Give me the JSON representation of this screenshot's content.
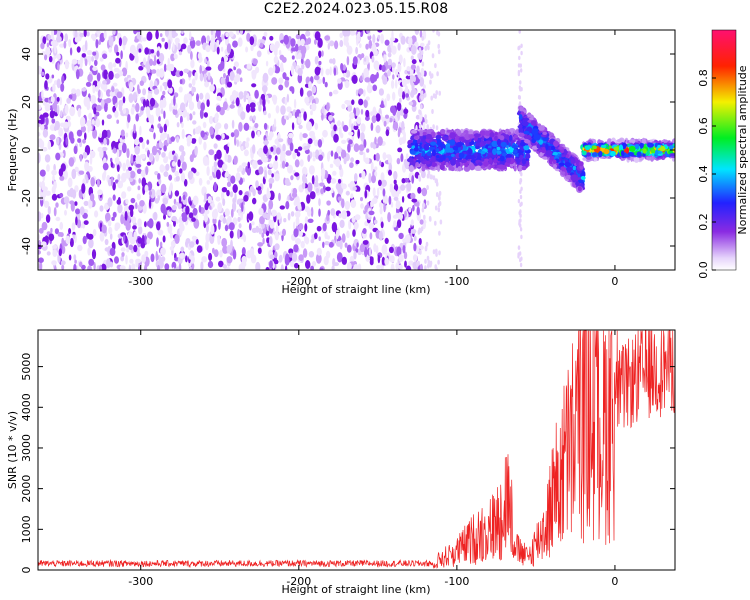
{
  "title": "C2E2.2024.023.05.15.R08",
  "colors": {
    "purple": "#7a16e0",
    "snr_line": "#ee2222",
    "colorbar_top": "#ff1070",
    "colorbar_bottom": "#ffffff"
  },
  "chart_data": [
    {
      "type": "heatmap",
      "title": "C2E2.2024.023.05.15.R08",
      "xlabel": "Height of straight line (km)",
      "ylabel": "Frequency (Hz)",
      "xlim": [
        -365,
        38
      ],
      "ylim": [
        -50,
        50
      ],
      "x_ticks": [
        -300,
        -200,
        -100,
        0
      ],
      "y_ticks": [
        -40,
        -20,
        0,
        20,
        40
      ],
      "x_tick_labels": [
        "-300",
        "-200",
        "-100",
        "0"
      ],
      "y_tick_labels": [
        "-40",
        "-20",
        "0",
        "20",
        "40"
      ],
      "colorbar": {
        "label": "Normalized spectral amplitude",
        "range": [
          0,
          1
        ],
        "ticks": [
          0.0,
          0.2,
          0.4,
          0.6,
          0.8
        ],
        "tick_labels": [
          "0.0",
          "0.2",
          "0.4",
          "0.6",
          "0.8"
        ],
        "colormap": "white-purple-blue-cyan-green-yellow-red-pink"
      },
      "regions": [
        {
          "x_range": [
            -365,
            -120
          ],
          "freq_range": [
            -50,
            50
          ],
          "description": "broadband noise",
          "amplitude": 0.1
        },
        {
          "x_range": [
            -130,
            -55
          ],
          "freq_center": 0,
          "freq_halfwidth": 8,
          "amplitude": 0.4
        },
        {
          "x_range": [
            -60,
            -20
          ],
          "freq_start": 12,
          "freq_end": -12,
          "amplitude": 0.4
        },
        {
          "x_range": [
            -20,
            38
          ],
          "freq_center": 0,
          "freq_halfwidth": 2,
          "amplitude": 0.9
        }
      ]
    },
    {
      "type": "line",
      "xlabel": "Height of straight line (km)",
      "ylabel": "SNR (10 * v/v)",
      "xlim": [
        -365,
        38
      ],
      "ylim": [
        0,
        5900
      ],
      "x_ticks": [
        -300,
        -200,
        -100,
        0
      ],
      "y_ticks": [
        0,
        1000,
        2000,
        3000,
        4000,
        5000
      ],
      "x_tick_labels": [
        "-300",
        "-200",
        "-100",
        "0"
      ],
      "y_tick_labels": [
        "0",
        "1000",
        "2000",
        "3000",
        "4000",
        "5000"
      ],
      "series": [
        {
          "x": [
            -365,
            -300,
            -200,
            -115,
            -100,
            -85,
            -75,
            -68,
            -62,
            -55,
            -45,
            -35,
            -28,
            -22,
            -18,
            -12,
            -5,
            0,
            10,
            20,
            30,
            38
          ],
          "y": [
            150,
            150,
            150,
            180,
            450,
            900,
            1100,
            1900,
            500,
            300,
            1000,
            2300,
            3000,
            3800,
            4200,
            3600,
            3700,
            4300,
            4600,
            4900,
            5000,
            5100
          ]
        }
      ]
    }
  ]
}
